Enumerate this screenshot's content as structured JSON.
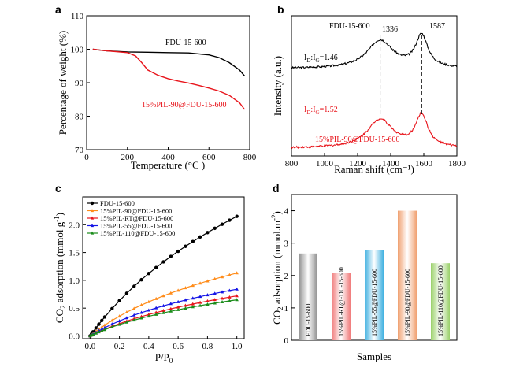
{
  "colors": {
    "black": "#000000",
    "red": "#e8141b",
    "orange": "#ff8c1a",
    "blue": "#1414e6",
    "green": "#1a8c1a"
  },
  "chart_data": [
    {
      "panel": "a",
      "type": "line",
      "xlabel": "Temperature (°C )",
      "ylabel": "Percentage of weight (%)",
      "xlim": [
        0,
        800
      ],
      "ylim": [
        70,
        110
      ],
      "xticks": [
        0,
        200,
        400,
        600,
        800
      ],
      "yticks": [
        70,
        80,
        90,
        100,
        110
      ],
      "series": [
        {
          "name": "FDU-15-600",
          "color": "#000000",
          "x": [
            30,
            100,
            200,
            300,
            400,
            500,
            600,
            650,
            700,
            750,
            775
          ],
          "y": [
            100,
            99.5,
            99.2,
            99.1,
            99.0,
            98.9,
            98.3,
            97.5,
            96.0,
            93.8,
            92.0
          ]
        },
        {
          "name": "15%PIL-90@FDU-15-600",
          "color": "#e8141b",
          "x": [
            30,
            100,
            200,
            240,
            270,
            300,
            350,
            400,
            450,
            500,
            550,
            600,
            650,
            700,
            750,
            775
          ],
          "y": [
            100,
            99.5,
            99.0,
            98.0,
            96.0,
            93.8,
            92.2,
            91.2,
            90.5,
            89.9,
            89.2,
            88.4,
            87.5,
            86.2,
            84.0,
            82.0
          ]
        }
      ]
    },
    {
      "panel": "b",
      "type": "line",
      "xlabel": "Raman shift (cm⁻¹)",
      "ylabel": "Intensity (a.u.)",
      "xlim": [
        800,
        1800
      ],
      "xticks": [
        800,
        1000,
        1200,
        1400,
        1600,
        1800
      ],
      "series": [
        {
          "name": "FDU-15-600",
          "color": "#000000",
          "ratio": "1.46",
          "offset": 1.15
        },
        {
          "name": "15%PIL-90@FDU-15-600",
          "color": "#e8141b",
          "ratio": "1.52",
          "offset": 0.0
        }
      ],
      "peaks": {
        "D": 1336,
        "G": 1587
      }
    },
    {
      "panel": "c",
      "type": "line",
      "xlabel": "P/P",
      "xlabel_sub": "0",
      "ylabel": "CO adsorption (mmol g )",
      "xlim": [
        -0.05,
        1.05
      ],
      "ylim": [
        -0.05,
        2.5
      ],
      "xticks": [
        0.0,
        0.2,
        0.4,
        0.6,
        0.8,
        1.0
      ],
      "yticks": [
        0.0,
        0.5,
        1.0,
        1.5,
        2.0
      ],
      "legend_position": "top-left",
      "x": [
        0.0,
        0.01,
        0.02,
        0.04,
        0.06,
        0.08,
        0.1,
        0.15,
        0.2,
        0.25,
        0.3,
        0.35,
        0.4,
        0.45,
        0.5,
        0.55,
        0.6,
        0.65,
        0.7,
        0.75,
        0.8,
        0.85,
        0.9,
        0.95,
        1.0
      ],
      "series": [
        {
          "name": "FDU-15-600",
          "color": "#000000",
          "marker": "circle",
          "vmax": 2.15,
          "k": 1.7
        },
        {
          "name": "15%PIL-90@FDU-15-600",
          "color": "#ff8c1a",
          "marker": "triangle",
          "vmax": 1.13,
          "k": 2.2
        },
        {
          "name": "15%PIL-RT@FDU-15-600",
          "color": "#e8141b",
          "marker": "triangle",
          "vmax": 0.72,
          "k": 2.0
        },
        {
          "name": "15%PIL-55@FDU-15-600",
          "color": "#1414e6",
          "marker": "triangle",
          "vmax": 0.84,
          "k": 2.4
        },
        {
          "name": "15%PIL-110@FDU-15-600",
          "color": "#1a8c1a",
          "marker": "triangle",
          "vmax": 0.65,
          "k": 2.2
        }
      ]
    },
    {
      "panel": "d",
      "type": "bar",
      "xlabel": "Samples",
      "ylabel": "CO adsorption (mmol.m )",
      "ylim": [
        0,
        4.5
      ],
      "yticks": [
        0,
        1,
        2,
        3,
        4
      ],
      "categories": [
        "FDU-15-600",
        "15%PIL-RT@FDU-15-600",
        "15%PIL-55@FDU-15-600",
        "15%PIL-90@FDU-15-600",
        "15%PIL-110@FDU-15-600"
      ],
      "values": [
        2.68,
        2.08,
        2.78,
        4.0,
        2.38
      ],
      "colors": [
        "#8c8c8c",
        "#f07a7a",
        "#3fb0e0",
        "#f0a070",
        "#9ad06a"
      ]
    }
  ],
  "panel_labels": [
    "a",
    "b",
    "c",
    "d"
  ],
  "annotations": {
    "a_fdu": "FDU-15-600",
    "a_pil": "15%PIL-90@FDU-15-600",
    "b_fdu": "FDU-15-600",
    "b_pil": "15%PIL-90@FDU-15-600",
    "b_ratio_black": "1.46",
    "b_ratio_red": "1.52",
    "b_peak_d": "1336",
    "b_peak_g": "1587",
    "b_id_ig_base": "I",
    "b_d_sub": "D",
    "b_g_sub": "G",
    "c_ylabel_sup": "-1",
    "c_ylabel_sub": "2",
    "d_ylabel_sup": "-2",
    "d_ylabel_sub": "2"
  }
}
